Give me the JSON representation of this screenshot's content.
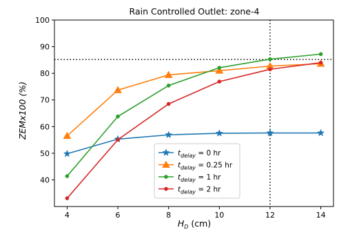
{
  "chart_data": {
    "type": "line",
    "title": "Rain Controlled Outlet: zone-4",
    "xlabel": {
      "main": "H",
      "sub": "D",
      "unit": " (cm)"
    },
    "ylabel": "ZEMx100 (%)",
    "xlim": [
      3.5,
      14.5
    ],
    "ylim": [
      30,
      100
    ],
    "xticks": [
      4,
      6,
      8,
      10,
      12,
      14
    ],
    "yticks": [
      40,
      50,
      60,
      70,
      80,
      90,
      100
    ],
    "grid": false,
    "legend_position": "lower-center",
    "reference_lines": {
      "vertical_x": 12,
      "horizontal_y": 85.2,
      "style": "dotted",
      "color": "#000000"
    },
    "series": [
      {
        "name": {
          "main": "t",
          "sub": "delay",
          "rest": " = 0 hr"
        },
        "color": "#1f77b4",
        "marker": "star",
        "x": [
          4,
          6,
          8,
          10,
          12,
          14
        ],
        "y": [
          49.8,
          55.3,
          56.9,
          57.5,
          57.6,
          57.6
        ]
      },
      {
        "name": {
          "main": "t",
          "sub": "delay",
          "rest": " = 0.25 hr"
        },
        "color": "#ff7f0e",
        "marker": "triangle",
        "x": [
          4,
          6,
          8,
          10,
          12,
          14
        ],
        "y": [
          56.5,
          73.7,
          79.4,
          81.0,
          82.7,
          83.6
        ]
      },
      {
        "name": {
          "main": "t",
          "sub": "delay",
          "rest": " = 1 hr"
        },
        "color": "#2ca02c",
        "marker": "circle",
        "x": [
          4,
          6,
          8,
          10,
          12,
          14
        ],
        "y": [
          41.4,
          63.8,
          75.4,
          82.1,
          85.3,
          87.2
        ]
      },
      {
        "name": {
          "main": "t",
          "sub": "delay",
          "rest": " = 2 hr"
        },
        "color": "#d62728",
        "marker": "circle",
        "x": [
          4,
          6,
          8,
          10,
          12,
          14
        ],
        "y": [
          33.1,
          55.1,
          68.5,
          76.9,
          81.5,
          84.0
        ]
      }
    ]
  }
}
